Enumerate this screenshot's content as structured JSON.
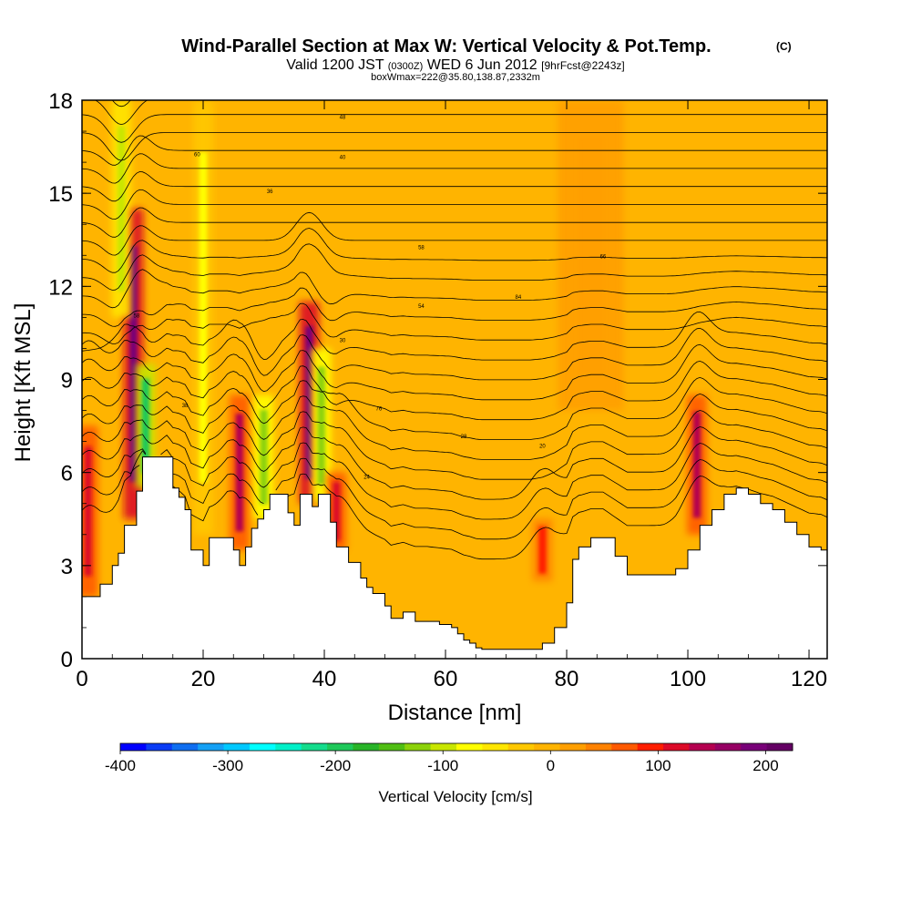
{
  "header": {
    "title": "Wind-Parallel Section at Max W: Vertical Velocity & Pot.Temp.",
    "copyright": "(C)",
    "valid_prefix": "Valid 1200 JST",
    "valid_utc": "(0300Z)",
    "valid_date": "WED 6 Jun 2012",
    "forecast": "[9hrFcst@2243z]",
    "boxwmax": "boxWmax=222@35.80,138.87,2332m"
  },
  "chart_data": {
    "type": "heatmap",
    "title": "Wind-Parallel Section at Max W: Vertical Velocity & Pot.Temp.",
    "xlabel": "Distance [nm]",
    "ylabel": "Height [Kft MSL]",
    "xlim": [
      0,
      123
    ],
    "ylim": [
      0,
      18
    ],
    "x_ticks": [
      "0",
      "20",
      "40",
      "60",
      "80",
      "100",
      "120"
    ],
    "y_ticks": [
      "0",
      "3",
      "6",
      "9",
      "12",
      "15",
      "18"
    ],
    "background_value": 0,
    "vertical_velocity_features": [
      {
        "x": 1,
        "y_bottom": 2,
        "y_top": 7.5,
        "value": 120
      },
      {
        "x": 8.5,
        "y_bottom": 4.5,
        "y_top": 14.5,
        "value": 200
      },
      {
        "x": 10.5,
        "y_bottom": 5.5,
        "y_top": 9.5,
        "value": -200
      },
      {
        "x": 6.5,
        "y_bottom": 11,
        "y_top": 18,
        "value": -110
      },
      {
        "x": 20,
        "y_bottom": 4,
        "y_top": 18,
        "value": -70
      },
      {
        "x": 26,
        "y_bottom": 3.5,
        "y_top": 8.5,
        "value": 140
      },
      {
        "x": 30,
        "y_bottom": 4.5,
        "y_top": 8.5,
        "value": -130
      },
      {
        "x": 37.5,
        "y_bottom": 5,
        "y_top": 11.5,
        "value": 200
      },
      {
        "x": 39.5,
        "y_bottom": 5,
        "y_top": 10,
        "value": -120
      },
      {
        "x": 42,
        "y_bottom": 3.5,
        "y_top": 6,
        "value": 120
      },
      {
        "x": 76,
        "y_bottom": 2.5,
        "y_top": 4.5,
        "value": 100
      },
      {
        "x": 101.5,
        "y_bottom": 4,
        "y_top": 8.5,
        "value": 140
      },
      {
        "x": 84,
        "y_bottom": 8,
        "y_top": 18,
        "value": 30
      }
    ],
    "terrain": {
      "x": [
        0,
        3,
        5,
        6,
        7,
        8,
        9,
        10,
        14,
        15,
        16,
        17,
        18,
        20,
        21,
        24,
        25,
        26,
        27,
        28,
        29,
        30,
        31,
        33,
        34,
        35,
        36,
        37,
        38,
        39,
        40,
        41,
        42,
        44,
        46,
        47,
        48,
        50,
        51,
        53,
        55,
        57,
        59,
        61,
        62,
        63,
        64,
        65,
        66,
        70,
        74,
        76,
        78,
        80,
        81,
        82,
        84,
        86,
        88,
        90,
        92,
        94,
        96,
        98,
        100,
        102,
        104,
        106,
        108,
        110,
        112,
        114,
        116,
        118,
        120,
        122,
        123
      ],
      "height": [
        2,
        2.4,
        3,
        3.4,
        4.3,
        4.3,
        5.4,
        6.5,
        6.5,
        5.5,
        5.2,
        4.8,
        3.5,
        3,
        3.9,
        3.9,
        3.5,
        3,
        3.6,
        4.2,
        4.5,
        4.8,
        5.3,
        5.3,
        4.7,
        4.3,
        5.3,
        5.3,
        4.9,
        5.3,
        5.3,
        4.4,
        3.6,
        3.1,
        2.6,
        2.3,
        2.1,
        1.7,
        1.3,
        1.5,
        1.2,
        1.2,
        1.1,
        1.0,
        0.8,
        0.6,
        0.5,
        0.35,
        0.3,
        0.3,
        0.3,
        0.5,
        1.0,
        1.8,
        3.2,
        3.6,
        3.9,
        3.9,
        3.3,
        2.7,
        2.7,
        2.7,
        2.7,
        2.9,
        3.5,
        4.3,
        4.8,
        5.3,
        5.5,
        5.3,
        5.0,
        4.8,
        4.4,
        4.0,
        3.6,
        3.5,
        3.3
      ]
    },
    "colorbar": {
      "label": "Vertical Velocity [cm/s]",
      "min": -400,
      "max": 225,
      "tick_labels": [
        "-400",
        "-300",
        "-200",
        "-100",
        "0",
        "100",
        "200"
      ],
      "tick_values": [
        -400,
        -300,
        -200,
        -100,
        0,
        100,
        200
      ],
      "colors": [
        "#0000ff",
        "#0a3cf5",
        "#0f6ef0",
        "#14a0f5",
        "#00c8ff",
        "#00ffff",
        "#00f0c8",
        "#14dc8c",
        "#1ec85a",
        "#28b428",
        "#50be14",
        "#8cd20a",
        "#c8e600",
        "#ffff00",
        "#ffe600",
        "#ffc800",
        "#ffb400",
        "#ff9f00",
        "#ff8200",
        "#ff5a00",
        "#ff1e00",
        "#dc0a28",
        "#b40050",
        "#960064",
        "#780078",
        "#640064"
      ]
    },
    "contour_labels": [
      "48",
      "40",
      "60",
      "36",
      "58",
      "66",
      "54",
      "58",
      "84",
      "30",
      "76",
      "38",
      "28",
      "24",
      "20"
    ]
  }
}
